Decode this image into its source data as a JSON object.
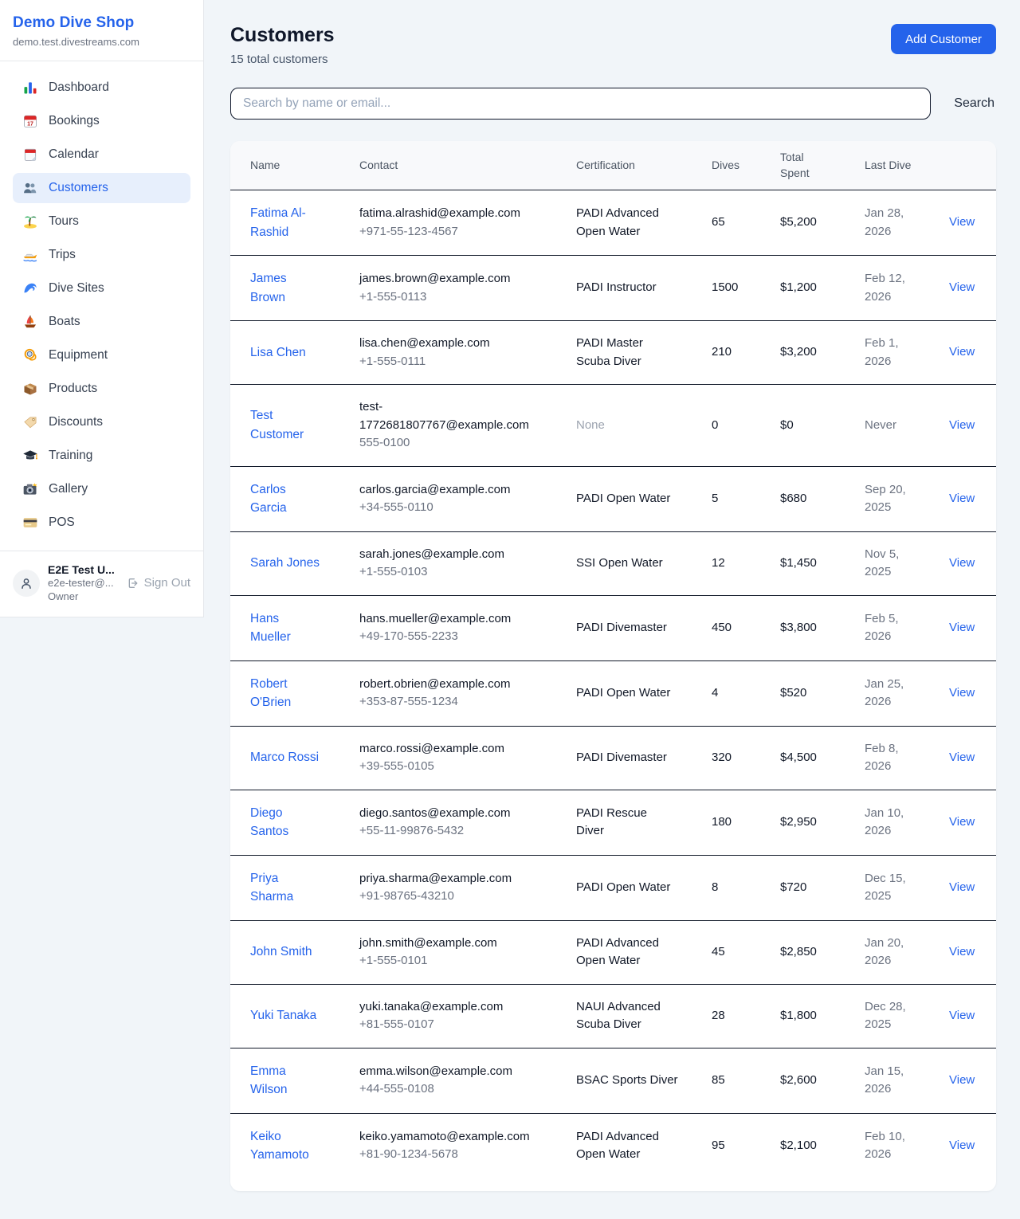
{
  "colors": {
    "accent": "#2563eb",
    "link": "#2563eb",
    "muted_text": "#9ca3af"
  },
  "sidebar": {
    "brand": {
      "name": "Demo Dive Shop",
      "domain": "demo.test.divestreams.com"
    },
    "items": [
      {
        "label": "Dashboard",
        "icon": "dashboard-icon",
        "active": false
      },
      {
        "label": "Bookings",
        "icon": "bookings-icon",
        "active": false
      },
      {
        "label": "Calendar",
        "icon": "calendar-icon",
        "active": false
      },
      {
        "label": "Customers",
        "icon": "customers-icon",
        "active": true
      },
      {
        "label": "Tours",
        "icon": "tours-icon",
        "active": false
      },
      {
        "label": "Trips",
        "icon": "trips-icon",
        "active": false
      },
      {
        "label": "Dive Sites",
        "icon": "dive-sites-icon",
        "active": false
      },
      {
        "label": "Boats",
        "icon": "boats-icon",
        "active": false
      },
      {
        "label": "Equipment",
        "icon": "equipment-icon",
        "active": false
      },
      {
        "label": "Products",
        "icon": "products-icon",
        "active": false
      },
      {
        "label": "Discounts",
        "icon": "discounts-icon",
        "active": false
      },
      {
        "label": "Training",
        "icon": "training-icon",
        "active": false
      },
      {
        "label": "Gallery",
        "icon": "gallery-icon",
        "active": false
      },
      {
        "label": "POS",
        "icon": "pos-icon",
        "active": false
      }
    ],
    "user": {
      "name": "E2E Test U...",
      "email": "e2e-tester@...",
      "role": "Owner",
      "sign_out_label": "Sign Out"
    }
  },
  "header": {
    "title": "Customers",
    "subtitle": "15 total customers",
    "add_button": "Add Customer"
  },
  "search": {
    "placeholder": "Search by name or email...",
    "button": "Search"
  },
  "table": {
    "columns": [
      "Name",
      "Contact",
      "Certification",
      "Dives",
      "Total Spent",
      "Last Dive",
      ""
    ],
    "view_label": "View",
    "rows": [
      {
        "name": "Fatima Al-Rashid",
        "email": "fatima.alrashid@example.com",
        "phone": "+971-55-123-4567",
        "certification": "PADI Advanced Open Water",
        "dives": "65",
        "total_spent": "$5,200",
        "last_dive": "Jan 28, 2026"
      },
      {
        "name": "James Brown",
        "email": "james.brown@example.com",
        "phone": "+1-555-0113",
        "certification": "PADI Instructor",
        "dives": "1500",
        "total_spent": "$1,200",
        "last_dive": "Feb 12, 2026"
      },
      {
        "name": "Lisa Chen",
        "email": "lisa.chen@example.com",
        "phone": "+1-555-0111",
        "certification": "PADI Master Scuba Diver",
        "dives": "210",
        "total_spent": "$3,200",
        "last_dive": "Feb 1, 2026"
      },
      {
        "name": "Test Customer",
        "email": "test-1772681807767@example.com",
        "phone": "555-0100",
        "certification": "None",
        "dives": "0",
        "total_spent": "$0",
        "last_dive": "Never"
      },
      {
        "name": "Carlos Garcia",
        "email": "carlos.garcia@example.com",
        "phone": "+34-555-0110",
        "certification": "PADI Open Water",
        "dives": "5",
        "total_spent": "$680",
        "last_dive": "Sep 20, 2025"
      },
      {
        "name": "Sarah Jones",
        "email": "sarah.jones@example.com",
        "phone": "+1-555-0103",
        "certification": "SSI Open Water",
        "dives": "12",
        "total_spent": "$1,450",
        "last_dive": "Nov 5, 2025"
      },
      {
        "name": "Hans Mueller",
        "email": "hans.mueller@example.com",
        "phone": "+49-170-555-2233",
        "certification": "PADI Divemaster",
        "dives": "450",
        "total_spent": "$3,800",
        "last_dive": "Feb 5, 2026"
      },
      {
        "name": "Robert O'Brien",
        "email": "robert.obrien@example.com",
        "phone": "+353-87-555-1234",
        "certification": "PADI Open Water",
        "dives": "4",
        "total_spent": "$520",
        "last_dive": "Jan 25, 2026"
      },
      {
        "name": "Marco Rossi",
        "email": "marco.rossi@example.com",
        "phone": "+39-555-0105",
        "certification": "PADI Divemaster",
        "dives": "320",
        "total_spent": "$4,500",
        "last_dive": "Feb 8, 2026"
      },
      {
        "name": "Diego Santos",
        "email": "diego.santos@example.com",
        "phone": "+55-11-99876-5432",
        "certification": "PADI Rescue Diver",
        "dives": "180",
        "total_spent": "$2,950",
        "last_dive": "Jan 10, 2026"
      },
      {
        "name": "Priya Sharma",
        "email": "priya.sharma@example.com",
        "phone": "+91-98765-43210",
        "certification": "PADI Open Water",
        "dives": "8",
        "total_spent": "$720",
        "last_dive": "Dec 15, 2025"
      },
      {
        "name": "John Smith",
        "email": "john.smith@example.com",
        "phone": "+1-555-0101",
        "certification": "PADI Advanced Open Water",
        "dives": "45",
        "total_spent": "$2,850",
        "last_dive": "Jan 20, 2026"
      },
      {
        "name": "Yuki Tanaka",
        "email": "yuki.tanaka@example.com",
        "phone": "+81-555-0107",
        "certification": "NAUI Advanced Scuba Diver",
        "dives": "28",
        "total_spent": "$1,800",
        "last_dive": "Dec 28, 2025"
      },
      {
        "name": "Emma Wilson",
        "email": "emma.wilson@example.com",
        "phone": "+44-555-0108",
        "certification": "BSAC Sports Diver",
        "dives": "85",
        "total_spent": "$2,600",
        "last_dive": "Jan 15, 2026"
      },
      {
        "name": "Keiko Yamamoto",
        "email": "keiko.yamamoto@example.com",
        "phone": "+81-90-1234-5678",
        "certification": "PADI Advanced Open Water",
        "dives": "95",
        "total_spent": "$2,100",
        "last_dive": "Feb 10, 2026"
      }
    ]
  }
}
